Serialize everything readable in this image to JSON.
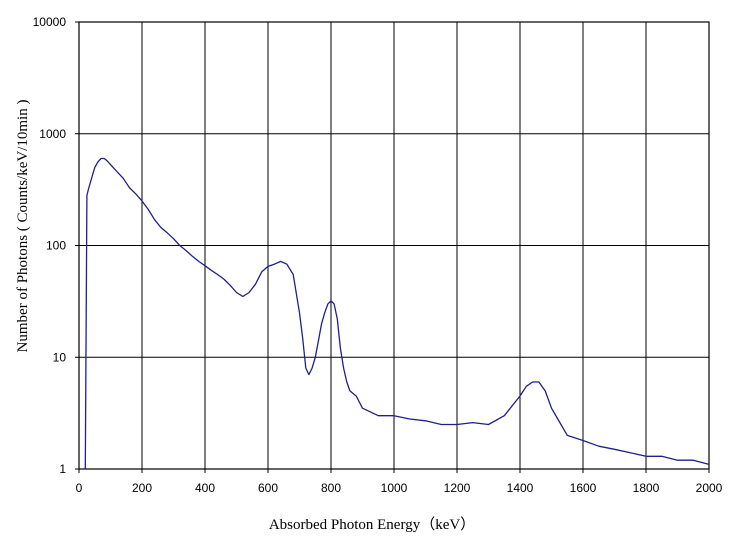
{
  "chart_data": {
    "type": "line",
    "title": "",
    "xlabel": "Absorbed Photon Energy（keV）",
    "ylabel": "Number  of Photons ( Counts/keV/10min  )",
    "xlim": [
      0,
      2000
    ],
    "ylim": [
      1,
      10000
    ],
    "yscale": "log",
    "grid": true,
    "legend": "none",
    "x_ticks": [
      "0",
      "200",
      "400",
      "600",
      "800",
      "1000",
      "1200",
      "1400",
      "1600",
      "1800",
      "2000"
    ],
    "y_ticks": [
      "1",
      "10",
      "100",
      "1000",
      "10000"
    ],
    "series": [
      {
        "color": "#1f1f8f",
        "x": [
          20,
          25,
          30,
          40,
          50,
          60,
          70,
          80,
          90,
          100,
          120,
          140,
          160,
          180,
          200,
          220,
          240,
          260,
          280,
          300,
          320,
          340,
          360,
          380,
          400,
          420,
          440,
          460,
          480,
          500,
          520,
          540,
          560,
          580,
          600,
          620,
          640,
          660,
          680,
          700,
          710,
          720,
          730,
          740,
          750,
          760,
          770,
          780,
          790,
          800,
          810,
          820,
          830,
          840,
          850,
          860,
          880,
          900,
          950,
          1000,
          1050,
          1100,
          1150,
          1200,
          1250,
          1300,
          1350,
          1400,
          1420,
          1440,
          1460,
          1480,
          1500,
          1520,
          1550,
          1600,
          1650,
          1700,
          1750,
          1800,
          1850,
          1900,
          1950,
          2000
        ],
        "y": [
          1,
          280,
          320,
          400,
          500,
          560,
          600,
          600,
          570,
          530,
          460,
          400,
          330,
          290,
          250,
          210,
          170,
          145,
          130,
          115,
          100,
          90,
          80,
          72,
          66,
          60,
          55,
          50,
          44,
          38,
          35,
          38,
          45,
          58,
          65,
          68,
          72,
          68,
          55,
          25,
          15,
          8,
          7,
          8,
          10,
          14,
          20,
          25,
          30,
          32,
          30,
          22,
          12,
          8,
          6,
          5,
          4.5,
          3.5,
          3,
          3,
          2.8,
          2.7,
          2.5,
          2.5,
          2.6,
          2.5,
          3,
          4.5,
          5.5,
          6,
          6,
          5,
          3.5,
          2.8,
          2,
          1.8,
          1.6,
          1.5,
          1.4,
          1.3,
          1.3,
          1.2,
          1.2,
          1.1
        ]
      }
    ]
  }
}
